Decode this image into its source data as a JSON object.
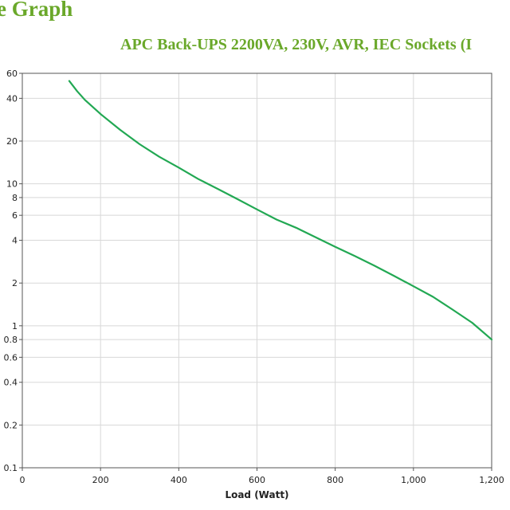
{
  "page": {
    "heading": "e Graph",
    "colors": {
      "heading": "#6aa82a",
      "series": "#22a853",
      "grid": "#d8d8d8",
      "axis": "#555555"
    }
  },
  "chart_data": {
    "type": "line",
    "title": "APC Back-UPS 2200VA, 230V, AVR, IEC Sockets (I",
    "xlabel": "Load (Watt)",
    "ylabel": "",
    "x_scale": "linear",
    "y_scale": "log",
    "xlim": [
      0,
      1200
    ],
    "ylim": [
      0.1,
      60
    ],
    "grid": true,
    "legend": "none",
    "x_ticks": [
      {
        "value": 0,
        "label": "0"
      },
      {
        "value": 200,
        "label": "200"
      },
      {
        "value": 400,
        "label": "400"
      },
      {
        "value": 600,
        "label": "600"
      },
      {
        "value": 800,
        "label": "800"
      },
      {
        "value": 1000,
        "label": "1,000"
      },
      {
        "value": 1200,
        "label": "1,200"
      }
    ],
    "y_ticks": [
      {
        "value": 0.1,
        "label": "0.1"
      },
      {
        "value": 0.2,
        "label": "0.2"
      },
      {
        "value": 0.4,
        "label": "0.4"
      },
      {
        "value": 0.6,
        "label": "0.6"
      },
      {
        "value": 0.8,
        "label": "0.8"
      },
      {
        "value": 1,
        "label": "1"
      },
      {
        "value": 2,
        "label": "2"
      },
      {
        "value": 4,
        "label": "4"
      },
      {
        "value": 6,
        "label": "6"
      },
      {
        "value": 8,
        "label": "8"
      },
      {
        "value": 10,
        "label": "10"
      },
      {
        "value": 20,
        "label": "20"
      },
      {
        "value": 40,
        "label": "40"
      },
      {
        "value": 60,
        "label": "60"
      }
    ],
    "series": [
      {
        "x": [
          120,
          140,
          160,
          200,
          250,
          300,
          350,
          400,
          450,
          500,
          550,
          600,
          650,
          700,
          750,
          800,
          850,
          900,
          950,
          1000,
          1050,
          1100,
          1150,
          1200
        ],
        "y": [
          53,
          45,
          39,
          31,
          24,
          19,
          15.5,
          13,
          10.8,
          9.2,
          7.8,
          6.6,
          5.6,
          4.9,
          4.2,
          3.6,
          3.1,
          2.65,
          2.25,
          1.9,
          1.6,
          1.3,
          1.05,
          0.8
        ]
      }
    ]
  }
}
